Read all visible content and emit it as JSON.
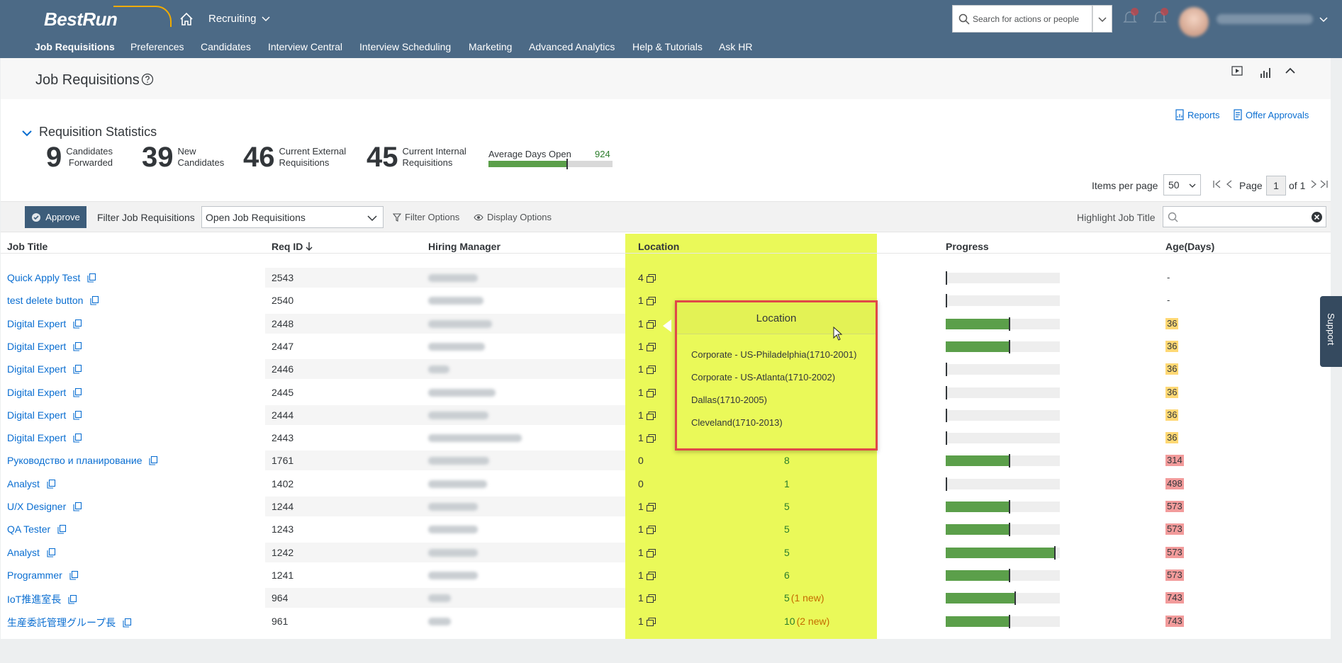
{
  "shell": {
    "logo": "BestRun",
    "app_title": "Recruiting",
    "search_placeholder": "Search for actions or people",
    "nav": [
      "Job Requisitions",
      "Preferences",
      "Candidates",
      "Interview Central",
      "Interview Scheduling",
      "Marketing",
      "Advanced Analytics",
      "Help & Tutorials",
      "Ask HR"
    ]
  },
  "page": {
    "title": "Job Requisitions",
    "reports": "Reports",
    "offer_approvals": "Offer Approvals"
  },
  "stats": {
    "header": "Requisition Statistics",
    "items": [
      {
        "value": "9",
        "line1": "Candidates",
        "line2": "Forwarded"
      },
      {
        "value": "39",
        "line1": "New",
        "line2": "Candidates"
      },
      {
        "value": "46",
        "line1": "Current External",
        "line2": "Requisitions"
      },
      {
        "value": "45",
        "line1": "Current Internal",
        "line2": "Requisitions"
      }
    ],
    "avg_label": "Average Days Open",
    "avg_value": "924",
    "avg_fill_fraction": 0.63
  },
  "pager": {
    "items_per_page_label": "Items per page",
    "items_per_page": "50",
    "page_label": "Page",
    "page": "1",
    "of_label": "of 1"
  },
  "toolbar": {
    "approve": "Approve",
    "filter_label": "Filter Job Requisitions",
    "filter_value": "Open Job Requisitions",
    "filter_options": "Filter Options",
    "display_options": "Display Options",
    "highlight_label": "Highlight Job Title"
  },
  "table": {
    "headers": {
      "job_title": "Job Title",
      "req_id": "Req ID",
      "hiring_manager": "Hiring Manager",
      "location": "Location",
      "progress": "Progress",
      "age": "Age(Days)"
    },
    "rows": [
      {
        "title": "Quick Apply Test",
        "req": "2543",
        "loc": "4",
        "cand": "",
        "progress": 0,
        "age": "-",
        "age_level": "none"
      },
      {
        "title": "test delete button",
        "req": "2540",
        "loc": "1",
        "cand": "",
        "progress": 0,
        "age": "-",
        "age_level": "none"
      },
      {
        "title": "Digital Expert",
        "req": "2448",
        "loc": "1",
        "cand": "",
        "progress": 0.55,
        "age": "36",
        "age_level": "warn"
      },
      {
        "title": "Digital Expert",
        "req": "2447",
        "loc": "1",
        "cand": "",
        "progress": 0.55,
        "age": "36",
        "age_level": "warn"
      },
      {
        "title": "Digital Expert",
        "req": "2446",
        "loc": "1",
        "cand": "",
        "progress": 0,
        "age": "36",
        "age_level": "warn"
      },
      {
        "title": "Digital Expert",
        "req": "2445",
        "loc": "1",
        "cand": "",
        "progress": 0,
        "age": "36",
        "age_level": "warn"
      },
      {
        "title": "Digital Expert",
        "req": "2444",
        "loc": "1",
        "cand": "-",
        "new": "",
        "progress": 0,
        "age": "36",
        "age_level": "warn"
      },
      {
        "title": "Digital Expert",
        "req": "2443",
        "loc": "1",
        "cand": "-",
        "new": "",
        "progress": 0,
        "age": "36",
        "age_level": "warn"
      },
      {
        "title": "Руководство и планирование",
        "req": "1761",
        "loc": "0",
        "cand": "8",
        "new": "",
        "progress": 0.55,
        "age": "314",
        "age_level": "crit"
      },
      {
        "title": "Analyst",
        "req": "1402",
        "loc": "0",
        "cand": "1",
        "new": "",
        "progress": 0,
        "age": "498",
        "age_level": "crit"
      },
      {
        "title": "U/X Designer",
        "req": "1244",
        "loc": "1",
        "cand": "5",
        "new": "",
        "progress": 0.55,
        "age": "573",
        "age_level": "crit"
      },
      {
        "title": "QA Tester",
        "req": "1243",
        "loc": "1",
        "cand": "5",
        "new": "",
        "progress": 0.55,
        "age": "573",
        "age_level": "crit"
      },
      {
        "title": "Analyst",
        "req": "1242",
        "loc": "1",
        "cand": "5",
        "new": "",
        "progress": 0.95,
        "age": "573",
        "age_level": "crit"
      },
      {
        "title": "Programmer",
        "req": "1241",
        "loc": "1",
        "cand": "6",
        "new": "",
        "progress": 0.55,
        "age": "573",
        "age_level": "crit"
      },
      {
        "title": "IoT推進室長",
        "req": "964",
        "loc": "1",
        "cand": "5",
        "new": "(1 new)",
        "progress": 0.6,
        "age": "743",
        "age_level": "crit"
      },
      {
        "title": "生産委託管理グループ長",
        "req": "961",
        "loc": "1",
        "cand": "10",
        "new": "(2 new)",
        "progress": 0.55,
        "age": "743",
        "age_level": "crit"
      }
    ]
  },
  "popover": {
    "title": "Location",
    "items": [
      "Corporate - US-Philadelphia(1710-2001)",
      "Corporate - US-Atlanta(1710-2002)",
      "Dallas(1710-2005)",
      "Cleveland(1710-2013)"
    ]
  },
  "support": "Support"
}
